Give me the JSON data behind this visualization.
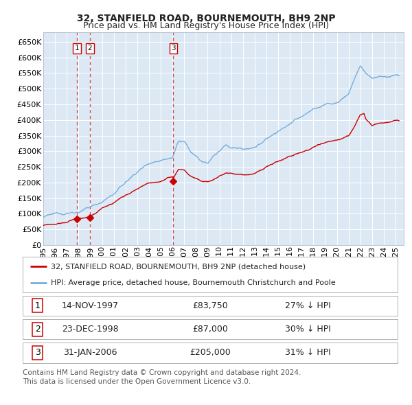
{
  "title": "32, STANFIELD ROAD, BOURNEMOUTH, BH9 2NP",
  "subtitle": "Price paid vs. HM Land Registry's House Price Index (HPI)",
  "ylim": [
    0,
    680000
  ],
  "yticks": [
    0,
    50000,
    100000,
    150000,
    200000,
    250000,
    300000,
    350000,
    400000,
    450000,
    500000,
    550000,
    600000,
    650000
  ],
  "xmin": 1995.0,
  "xmax": 2025.7,
  "background_color": "#dce9f5",
  "grid_color": "#ffffff",
  "red_line_color": "#cc0000",
  "blue_line_color": "#7aaddb",
  "vline_color": "#cc0000",
  "sale_points": [
    {
      "date_num": 1997.87,
      "price": 83750,
      "label": "1"
    },
    {
      "date_num": 1998.98,
      "price": 87000,
      "label": "2"
    },
    {
      "date_num": 2006.08,
      "price": 205000,
      "label": "3"
    }
  ],
  "legend_entries": [
    "32, STANFIELD ROAD, BOURNEMOUTH, BH9 2NP (detached house)",
    "HPI: Average price, detached house, Bournemouth Christchurch and Poole"
  ],
  "table_rows": [
    {
      "num": "1",
      "date": "14-NOV-1997",
      "price": "£83,750",
      "hpi": "27% ↓ HPI"
    },
    {
      "num": "2",
      "date": "23-DEC-1998",
      "price": "£87,000",
      "hpi": "30% ↓ HPI"
    },
    {
      "num": "3",
      "date": "31-JAN-2006",
      "price": "£205,000",
      "hpi": "31% ↓ HPI"
    }
  ],
  "footnote": "Contains HM Land Registry data © Crown copyright and database right 2024.\nThis data is licensed under the Open Government Licence v3.0.",
  "title_fontsize": 10,
  "subtitle_fontsize": 9,
  "tick_fontsize": 8,
  "legend_fontsize": 8,
  "table_fontsize": 9,
  "footnote_fontsize": 7.5
}
